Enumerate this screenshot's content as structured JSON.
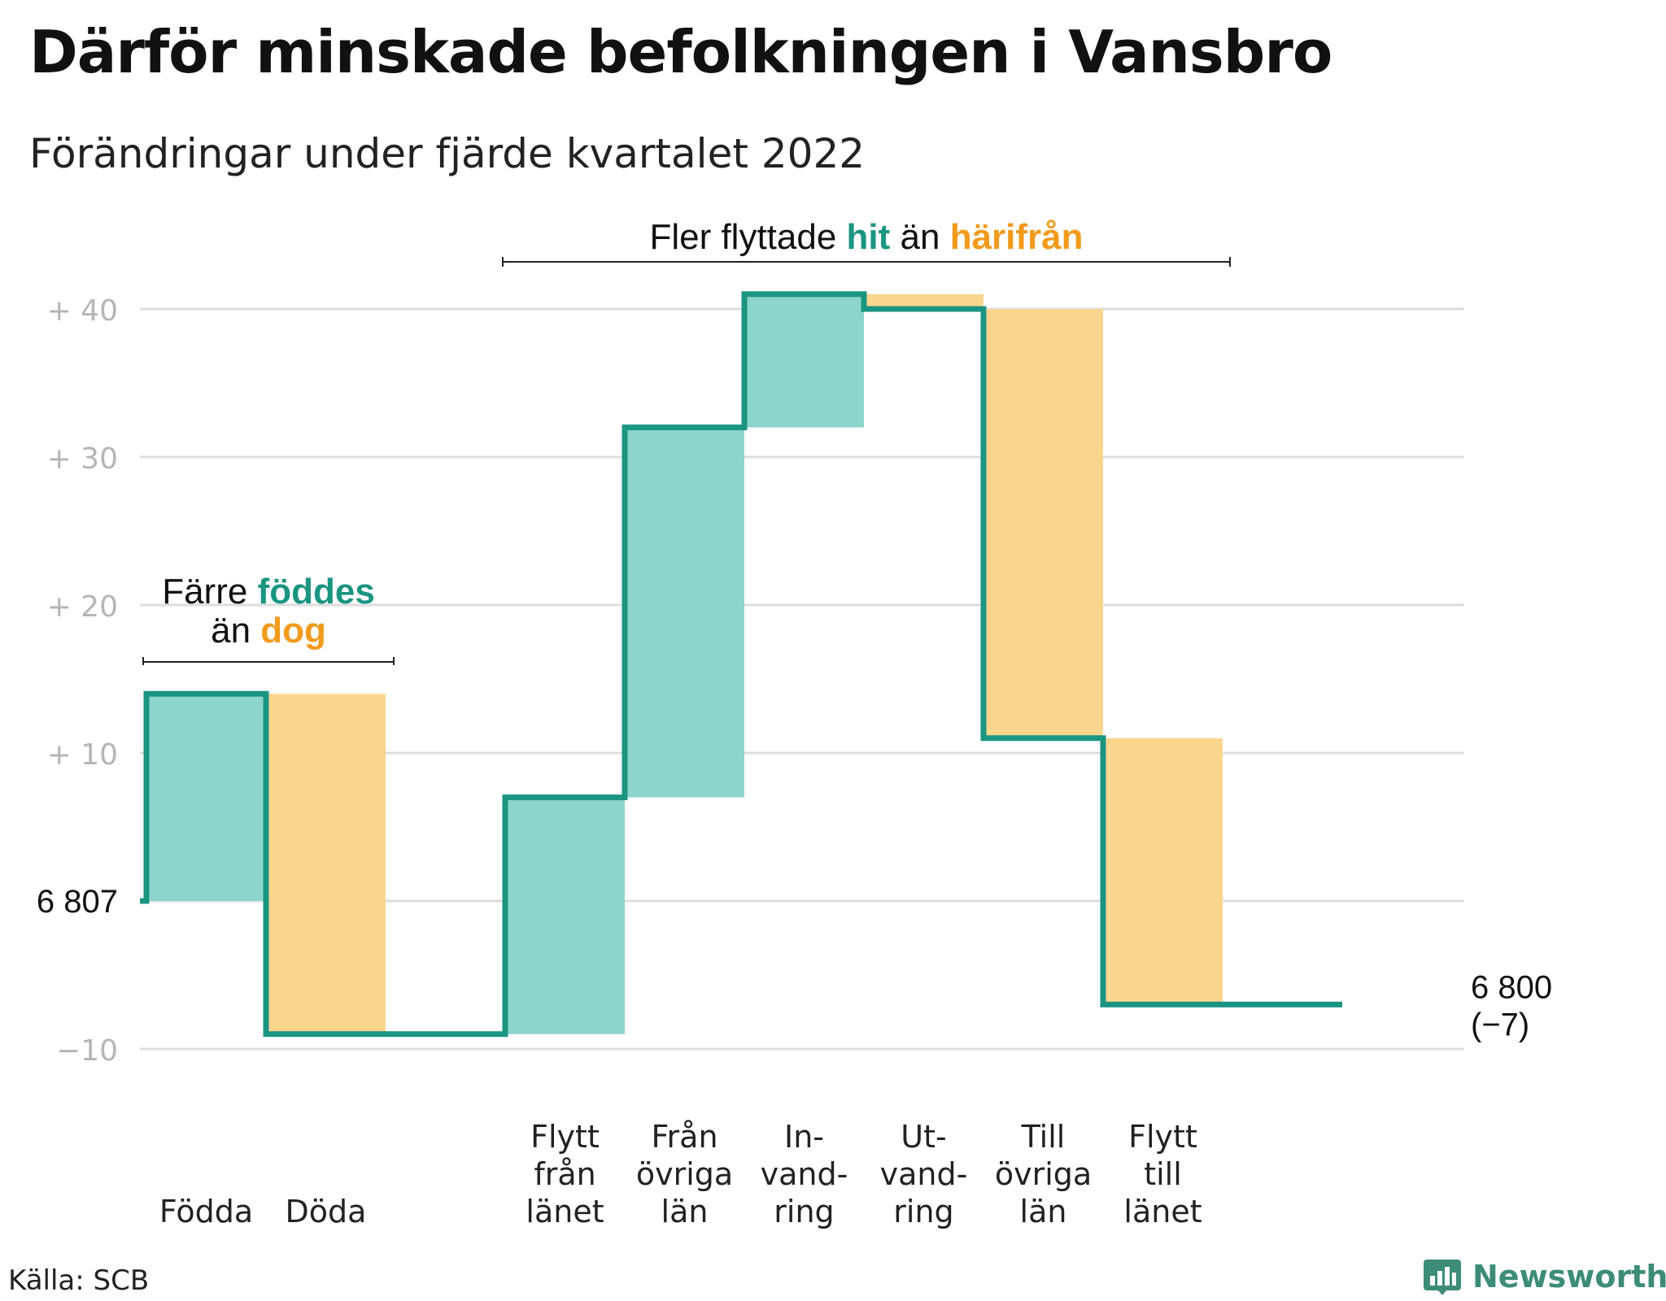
{
  "title": "Därför minskade befolkningen i Vansbro",
  "subtitle": "Förändringar under fjärde kvartalet 2022",
  "source": "Källa: SCB",
  "brand": {
    "name": "Newsworthy",
    "icon": "newsworthy-logo-icon"
  },
  "colors": {
    "increase": "#8dd4cb",
    "decrease": "#fad58e",
    "line": "#1a9582",
    "accent_green": "#1a9582",
    "accent_orange": "#f29a1c",
    "grid": "#dddddd"
  },
  "chart_data": {
    "type": "waterfall",
    "baseline": 6807,
    "baseline_label": "6 807",
    "y_ticks": [
      {
        "value": 40,
        "label": "+ 40"
      },
      {
        "value": 30,
        "label": "+ 30"
      },
      {
        "value": 20,
        "label": "+ 20"
      },
      {
        "value": 10,
        "label": "+ 10"
      },
      {
        "value": 0,
        "label": ""
      },
      {
        "value": -10,
        "label": "−10"
      }
    ],
    "ylim": [
      -10,
      41
    ],
    "grid": true,
    "steps": [
      {
        "label": [
          "Födda"
        ],
        "change": 14,
        "kind": "increase"
      },
      {
        "label": [
          "Döda"
        ],
        "change": -23,
        "kind": "decrease"
      },
      {
        "label": [],
        "change": 0,
        "kind": "none"
      },
      {
        "label": [
          "Flytt",
          "från",
          "länet"
        ],
        "change": 16,
        "kind": "increase"
      },
      {
        "label": [
          "Från",
          "övriga",
          "län"
        ],
        "change": 25,
        "kind": "increase"
      },
      {
        "label": [
          "In-",
          "vand-",
          "ring"
        ],
        "change": 9,
        "kind": "increase"
      },
      {
        "label": [
          "Ut-",
          "vand-",
          "ring"
        ],
        "change": -1,
        "kind": "decrease"
      },
      {
        "label": [
          "Till",
          "övriga",
          "län"
        ],
        "change": -29,
        "kind": "decrease"
      },
      {
        "label": [
          "Flytt",
          "till",
          "länet"
        ],
        "change": -18,
        "kind": "decrease"
      },
      {
        "label": [],
        "change": 0,
        "kind": "none"
      }
    ],
    "end_value_label": "6 800",
    "end_change_label": "(−7)",
    "annotations": [
      {
        "parts": [
          {
            "text": "Färre ",
            "color": "dark"
          },
          {
            "text": "föddes",
            "color": "green"
          }
        ],
        "parts2": [
          {
            "text": "än ",
            "color": "dark"
          },
          {
            "text": "dog",
            "color": "orange"
          }
        ]
      },
      {
        "parts": [
          {
            "text": "Fler flyttade ",
            "color": "dark"
          },
          {
            "text": "hit",
            "color": "green"
          },
          {
            "text": " än ",
            "color": "dark"
          },
          {
            "text": "härifrån",
            "color": "orange"
          }
        ]
      }
    ]
  }
}
